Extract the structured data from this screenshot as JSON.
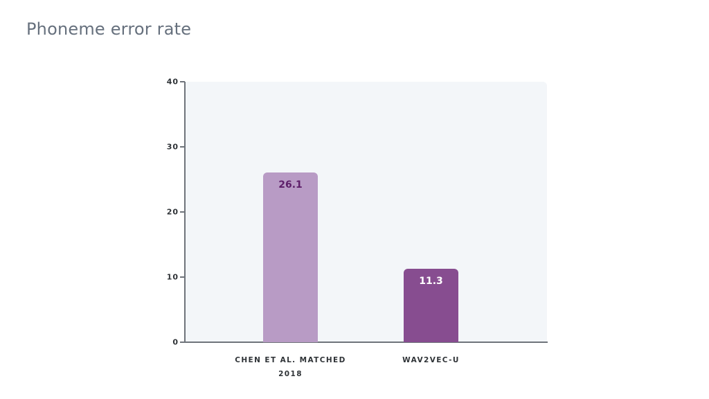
{
  "title": "Phoneme error rate",
  "chart_data": {
    "type": "bar",
    "title": "Phoneme error rate",
    "xlabel": "",
    "ylabel": "",
    "categories": [
      "CHEN ET AL. MATCHED 2018",
      "WAV2VEC-U"
    ],
    "category_lines": [
      [
        "CHEN ET AL. MATCHED",
        "2018"
      ],
      [
        "WAV2VEC-U"
      ]
    ],
    "values": [
      26.1,
      11.3
    ],
    "value_labels": [
      "26.1",
      "11.3"
    ],
    "colors": [
      "#b89bc5",
      "#874d90"
    ],
    "label_colors": [
      "#5e1f6a",
      "#ffffff"
    ],
    "ylim": [
      0,
      40
    ],
    "yticks": [
      0,
      10,
      20,
      30,
      40
    ],
    "ytick_labels": [
      "0",
      "10",
      "20",
      "30",
      "40"
    ],
    "grid": false,
    "legend": null,
    "plot_background": "#f3f6f9"
  }
}
